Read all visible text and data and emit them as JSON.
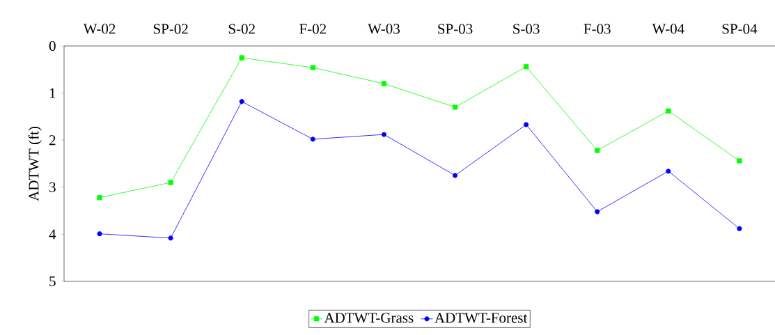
{
  "chart_data": {
    "type": "line",
    "ylabel": "ADTWT (ft)",
    "categories": [
      "W-02",
      "SP-02",
      "S-02",
      "F-02",
      "W-03",
      "SP-03",
      "S-03",
      "F-03",
      "W-04",
      "SP-04"
    ],
    "series": [
      {
        "name": "ADTWT-Grass",
        "color": "#00ff00",
        "marker": "square",
        "values": [
          3.22,
          2.9,
          0.25,
          0.46,
          0.8,
          1.3,
          0.44,
          2.22,
          1.38,
          2.44
        ]
      },
      {
        "name": "ADTWT-Forest",
        "color": "#0000ff",
        "marker": "circle",
        "values": [
          3.99,
          4.08,
          1.18,
          1.98,
          1.88,
          2.75,
          1.67,
          3.52,
          2.66,
          3.88
        ]
      }
    ],
    "ylim": [
      5,
      0
    ],
    "yticks": [
      0,
      1,
      2,
      3,
      4,
      5
    ],
    "legend": "bottom",
    "grid": false
  }
}
